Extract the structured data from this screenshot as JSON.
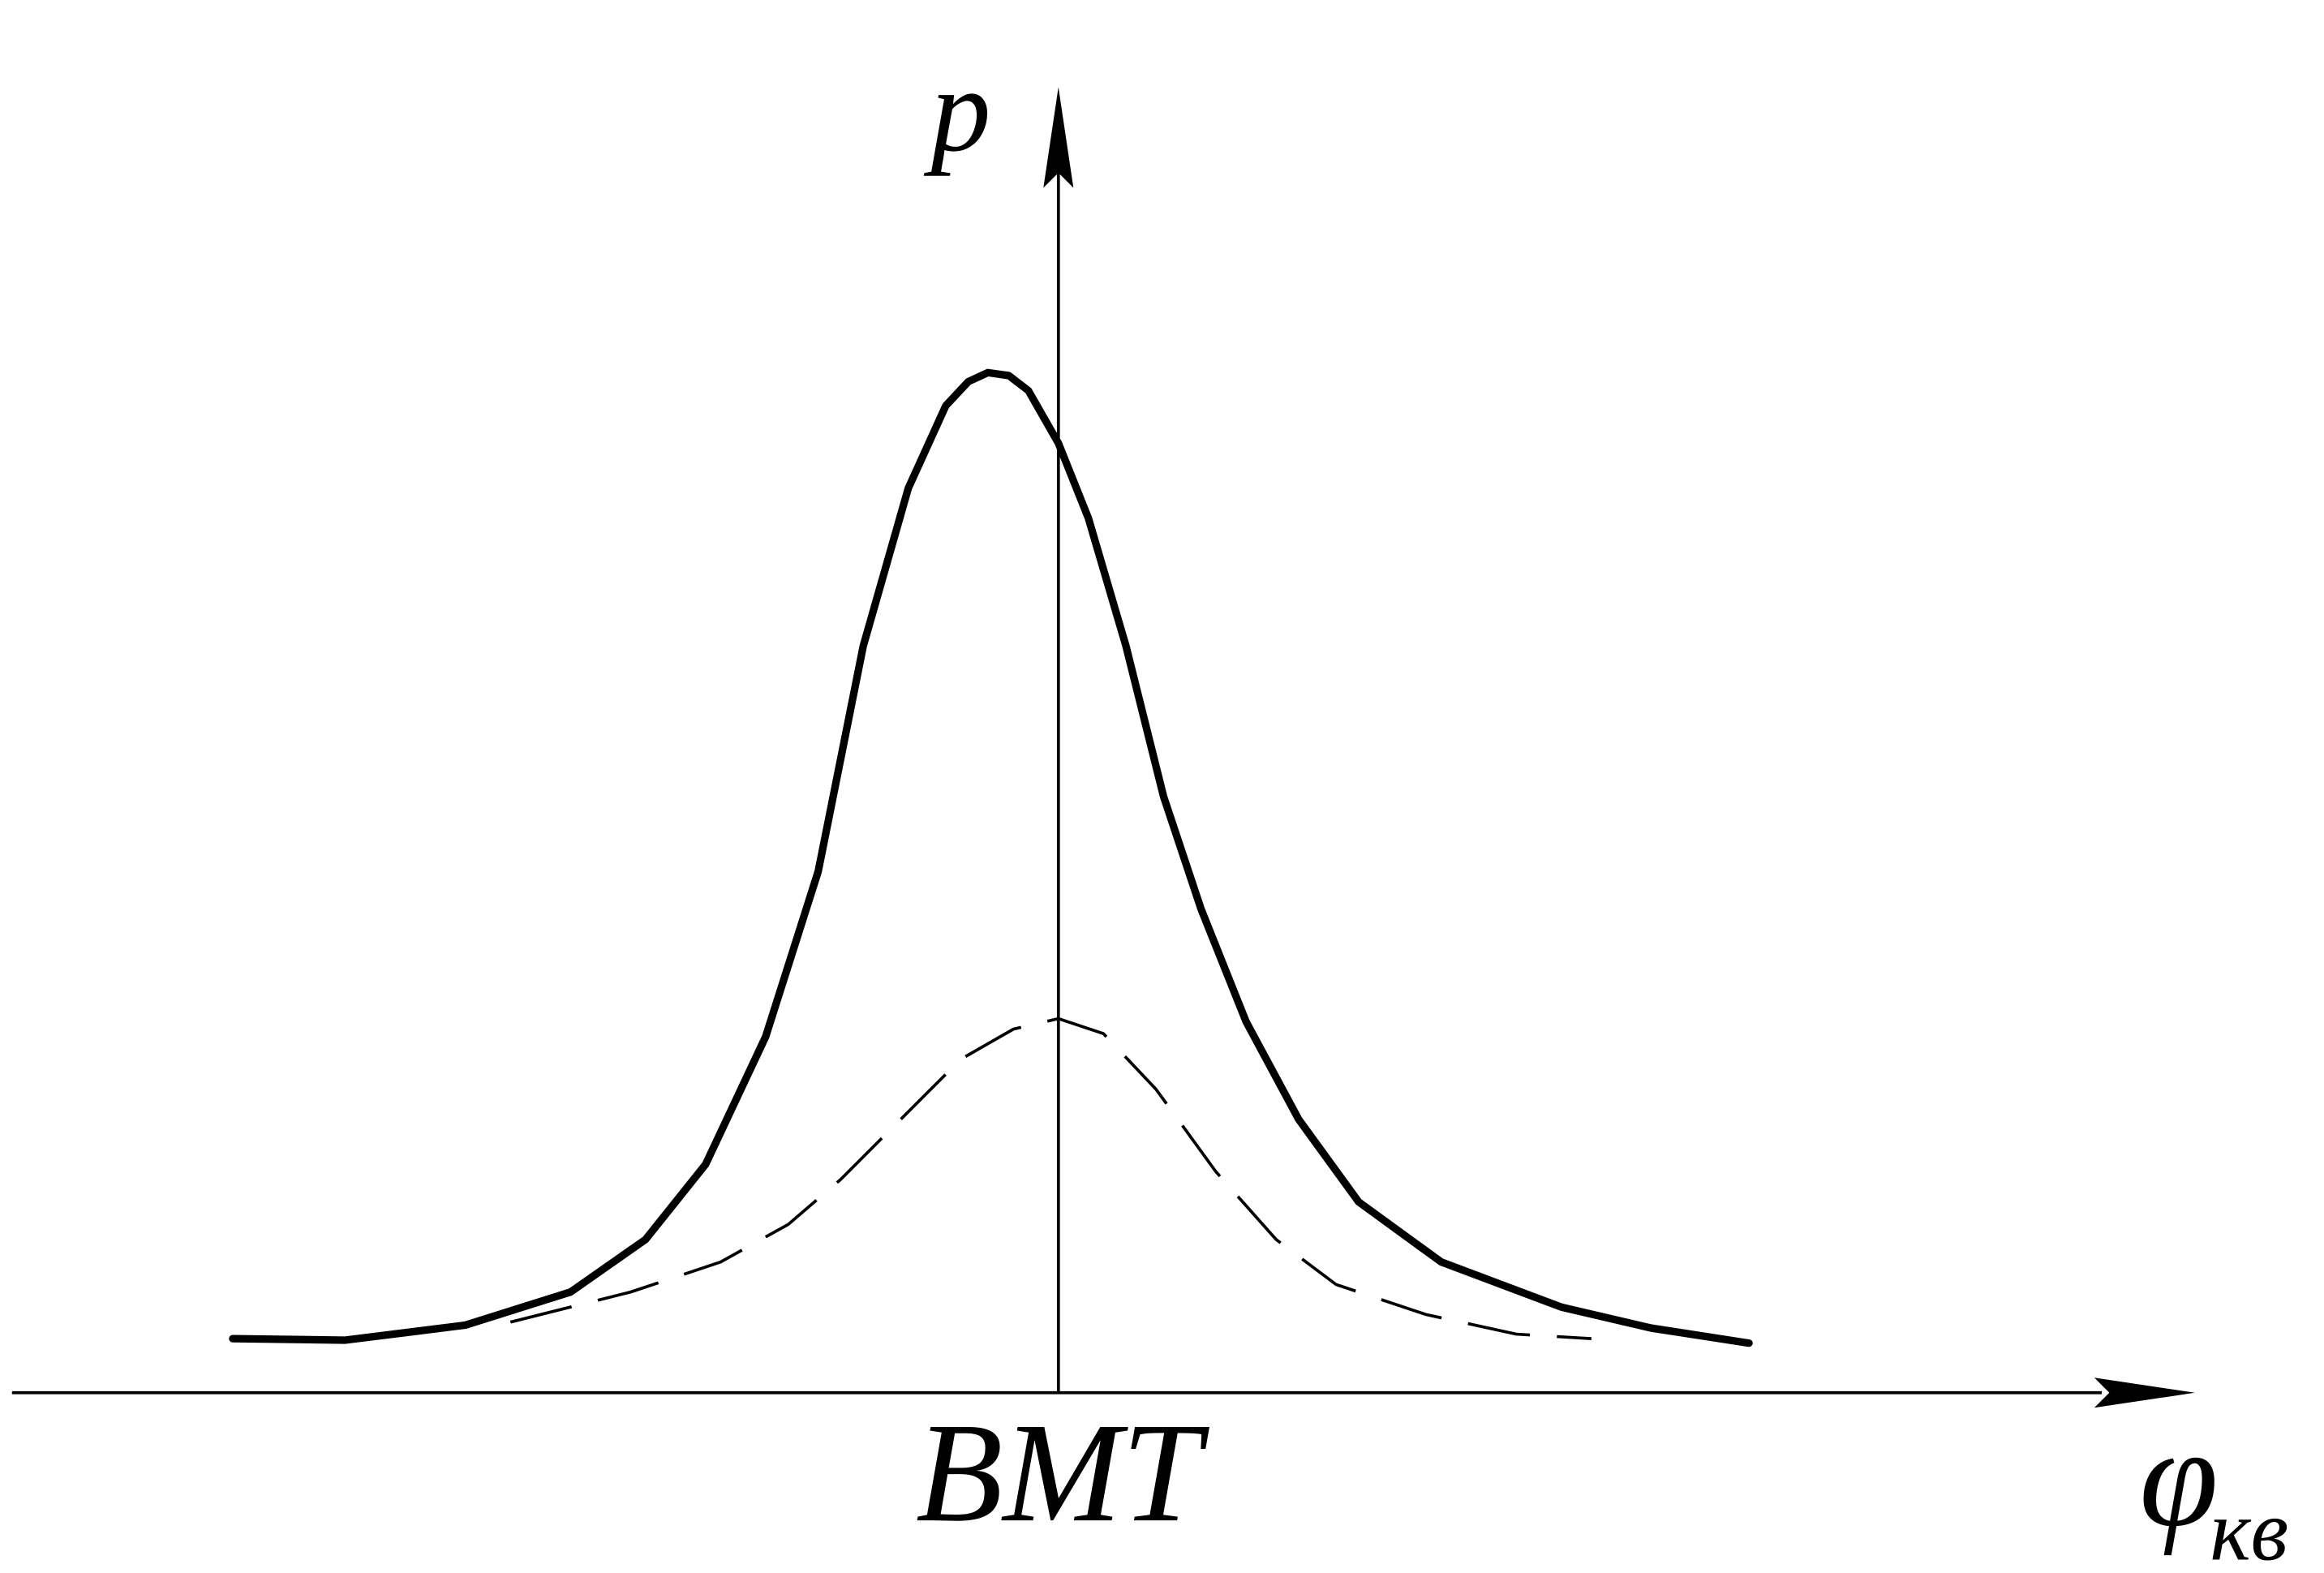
{
  "axes": {
    "y_label": "p",
    "x_label": "φ",
    "x_label_subscript": "кв",
    "origin_label": "BMT"
  }
}
